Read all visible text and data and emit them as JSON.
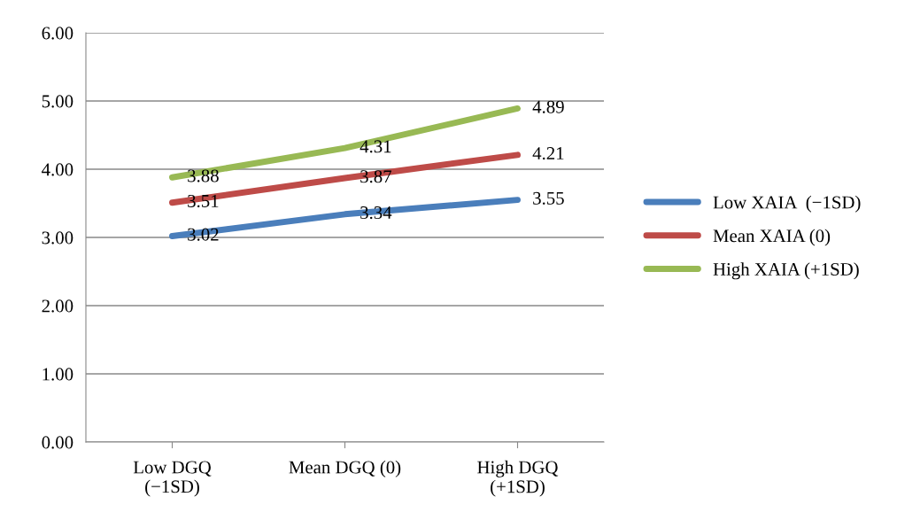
{
  "chart_data": {
    "type": "line",
    "categories": [
      "Low DGQ\n(−1SD)",
      "Mean DGQ (0)",
      "High DGQ\n(+1SD)"
    ],
    "series": [
      {
        "name": "Low XAIA  (−1SD)",
        "color": "#4a7ebb",
        "values": [
          3.02,
          3.34,
          3.55
        ]
      },
      {
        "name": "Mean XAIA (0)",
        "color": "#be4b48",
        "values": [
          3.51,
          3.87,
          4.21
        ]
      },
      {
        "name": "High XAIA (+1SD)",
        "color": "#98b954",
        "values": [
          3.88,
          4.31,
          4.89
        ]
      }
    ],
    "ylim": [
      0,
      6
    ],
    "yticks": [
      {
        "value": 0,
        "label": "0.00"
      },
      {
        "value": 1,
        "label": "1.00"
      },
      {
        "value": 2,
        "label": "2.00"
      },
      {
        "value": 3,
        "label": "3.00"
      },
      {
        "value": 4,
        "label": "4.00"
      },
      {
        "value": 5,
        "label": "5.00"
      },
      {
        "value": 6,
        "label": "6.00"
      }
    ],
    "grid": "y",
    "legend": "right",
    "data_labels": true,
    "marker": "none",
    "line_style": "solid"
  }
}
